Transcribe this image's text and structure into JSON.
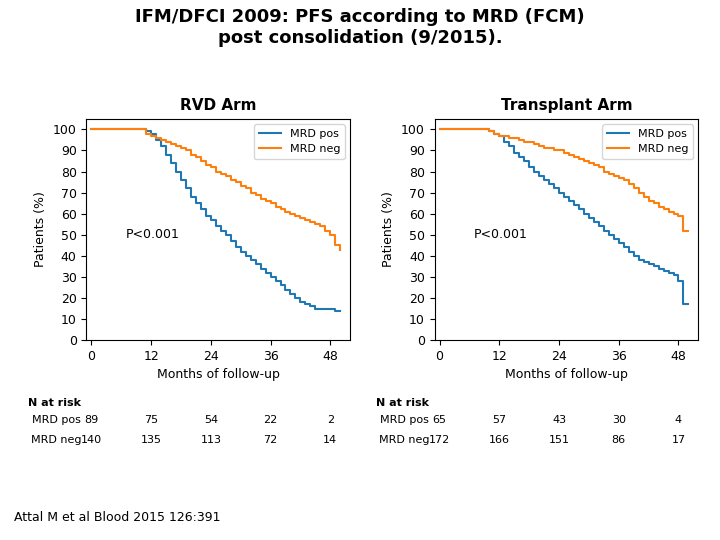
{
  "title": "IFM/DFCI 2009: PFS according to MRD (FCM)\npost consolidation (9/2015).",
  "annotations": [
    "Attal M et al Blood 2015 126:391"
  ],
  "chart_data": [
    {
      "type": "step",
      "title": "RVD Arm",
      "x_label": "Months of follow-up",
      "y_label": "Patients (%)",
      "x": [
        0,
        1,
        9,
        10,
        11,
        12,
        13,
        14,
        15,
        16,
        17,
        18,
        19,
        20,
        21,
        22,
        23,
        24,
        25,
        26,
        27,
        28,
        29,
        30,
        31,
        32,
        33,
        34,
        35,
        36,
        37,
        38,
        39,
        40,
        41,
        42,
        43,
        44,
        45,
        46,
        47,
        48,
        49,
        50
      ],
      "series": [
        {
          "name": "MRD pos",
          "values": [
            100,
            100,
            100,
            100,
            99,
            98,
            95,
            92,
            88,
            84,
            80,
            76,
            72,
            68,
            65,
            62,
            59,
            57,
            54,
            52,
            50,
            47,
            44,
            42,
            40,
            38,
            36,
            34,
            32,
            30,
            28,
            26,
            24,
            22,
            20,
            18,
            17,
            16,
            15,
            15,
            15,
            15,
            14,
            14
          ]
        },
        {
          "name": "MRD neg",
          "values": [
            100,
            100,
            100,
            100,
            98,
            97,
            96,
            95,
            94,
            93,
            92,
            91,
            90,
            88,
            87,
            85,
            83,
            82,
            80,
            79,
            78,
            76,
            75,
            73,
            72,
            70,
            69,
            67,
            66,
            65,
            63,
            62,
            61,
            60,
            59,
            58,
            57,
            56,
            55,
            54,
            52,
            50,
            45,
            43
          ]
        }
      ],
      "xlim": [
        -1,
        52
      ],
      "ylim": [
        0,
        105
      ],
      "xticks": [
        0,
        12,
        24,
        36,
        48
      ],
      "yticks": [
        0,
        10,
        20,
        30,
        40,
        50,
        60,
        70,
        80,
        90,
        100
      ],
      "legend": "upper right",
      "annotations": [
        "P<0.001"
      ],
      "n_at_risk": {
        "label": "N at risk",
        "rows": [
          {
            "name": "MRD pos",
            "values": [
              89,
              75,
              54,
              22,
              2
            ]
          },
          {
            "name": "MRD neg",
            "values": [
              140,
              135,
              113,
              72,
              14
            ]
          }
        ]
      }
    },
    {
      "type": "step",
      "title": "Transplant Arm",
      "x_label": "Months of follow-up",
      "y_label": "Patients (%)",
      "x": [
        0,
        1,
        9,
        10,
        11,
        12,
        13,
        14,
        15,
        16,
        17,
        18,
        19,
        20,
        21,
        22,
        23,
        24,
        25,
        26,
        27,
        28,
        29,
        30,
        31,
        32,
        33,
        34,
        35,
        36,
        37,
        38,
        39,
        40,
        41,
        42,
        43,
        44,
        45,
        46,
        47,
        48,
        49,
        50
      ],
      "series": [
        {
          "name": "MRD pos",
          "values": [
            100,
            100,
            100,
            99,
            98,
            97,
            94,
            92,
            89,
            87,
            85,
            82,
            80,
            78,
            76,
            74,
            72,
            70,
            68,
            66,
            64,
            62,
            60,
            58,
            56,
            54,
            52,
            50,
            48,
            46,
            44,
            42,
            40,
            38,
            37,
            36,
            35,
            34,
            33,
            32,
            31,
            28,
            17,
            17
          ]
        },
        {
          "name": "MRD neg",
          "values": [
            100,
            100,
            100,
            99,
            98,
            97,
            97,
            96,
            96,
            95,
            94,
            94,
            93,
            92,
            91,
            91,
            90,
            90,
            89,
            88,
            87,
            86,
            85,
            84,
            83,
            82,
            80,
            79,
            78,
            77,
            76,
            74,
            72,
            70,
            68,
            66,
            65,
            63,
            62,
            61,
            60,
            59,
            52,
            52
          ]
        }
      ],
      "xlim": [
        -1,
        52
      ],
      "ylim": [
        0,
        105
      ],
      "xticks": [
        0,
        12,
        24,
        36,
        48
      ],
      "yticks": [
        0,
        10,
        20,
        30,
        40,
        50,
        60,
        70,
        80,
        90,
        100
      ],
      "legend": "upper right",
      "annotations": [
        "P<0.001"
      ],
      "n_at_risk": {
        "label": "N at risk",
        "rows": [
          {
            "name": "MRD pos",
            "values": [
              65,
              57,
              43,
              30,
              4
            ]
          },
          {
            "name": "MRD neg",
            "values": [
              172,
              166,
              151,
              86,
              17
            ]
          }
        ]
      }
    }
  ]
}
